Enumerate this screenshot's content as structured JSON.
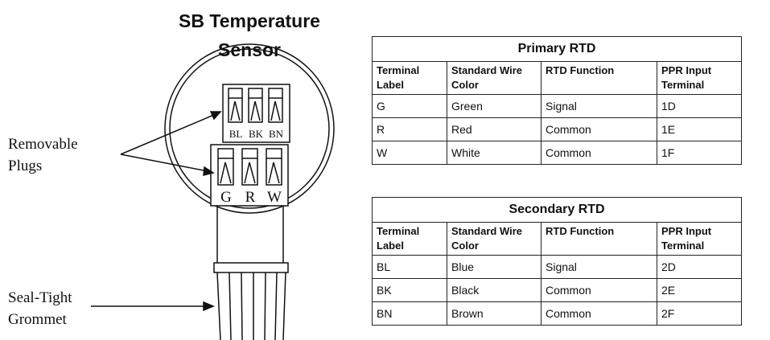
{
  "title": "SB Temperature Sensor",
  "callouts": {
    "plugs": "Removable Plugs",
    "grommet": "Seal-Tight Grommet"
  },
  "upper_plug": [
    "BL",
    "BK",
    "BN"
  ],
  "lower_plug": [
    "G",
    "R",
    "W"
  ],
  "tables": [
    {
      "title": "Primary RTD",
      "header": [
        "Terminal Label",
        "Standard Wire Color",
        "RTD Function",
        "PPR Input Terminal"
      ],
      "rows": [
        [
          "G",
          "Green",
          "Signal",
          "1D"
        ],
        [
          "R",
          "Red",
          "Common",
          "1E"
        ],
        [
          "W",
          "White",
          "Common",
          "1F"
        ]
      ]
    },
    {
      "title": "Secondary RTD",
      "header": [
        "Terminal Label",
        "Standard Wire Color",
        "RTD Function",
        "PPR Input Terminal"
      ],
      "rows": [
        [
          "BL",
          "Blue",
          "Signal",
          "2D"
        ],
        [
          "BK",
          "Black",
          "Common",
          "2E"
        ],
        [
          "BN",
          "Brown",
          "Common",
          "2F"
        ]
      ]
    }
  ]
}
